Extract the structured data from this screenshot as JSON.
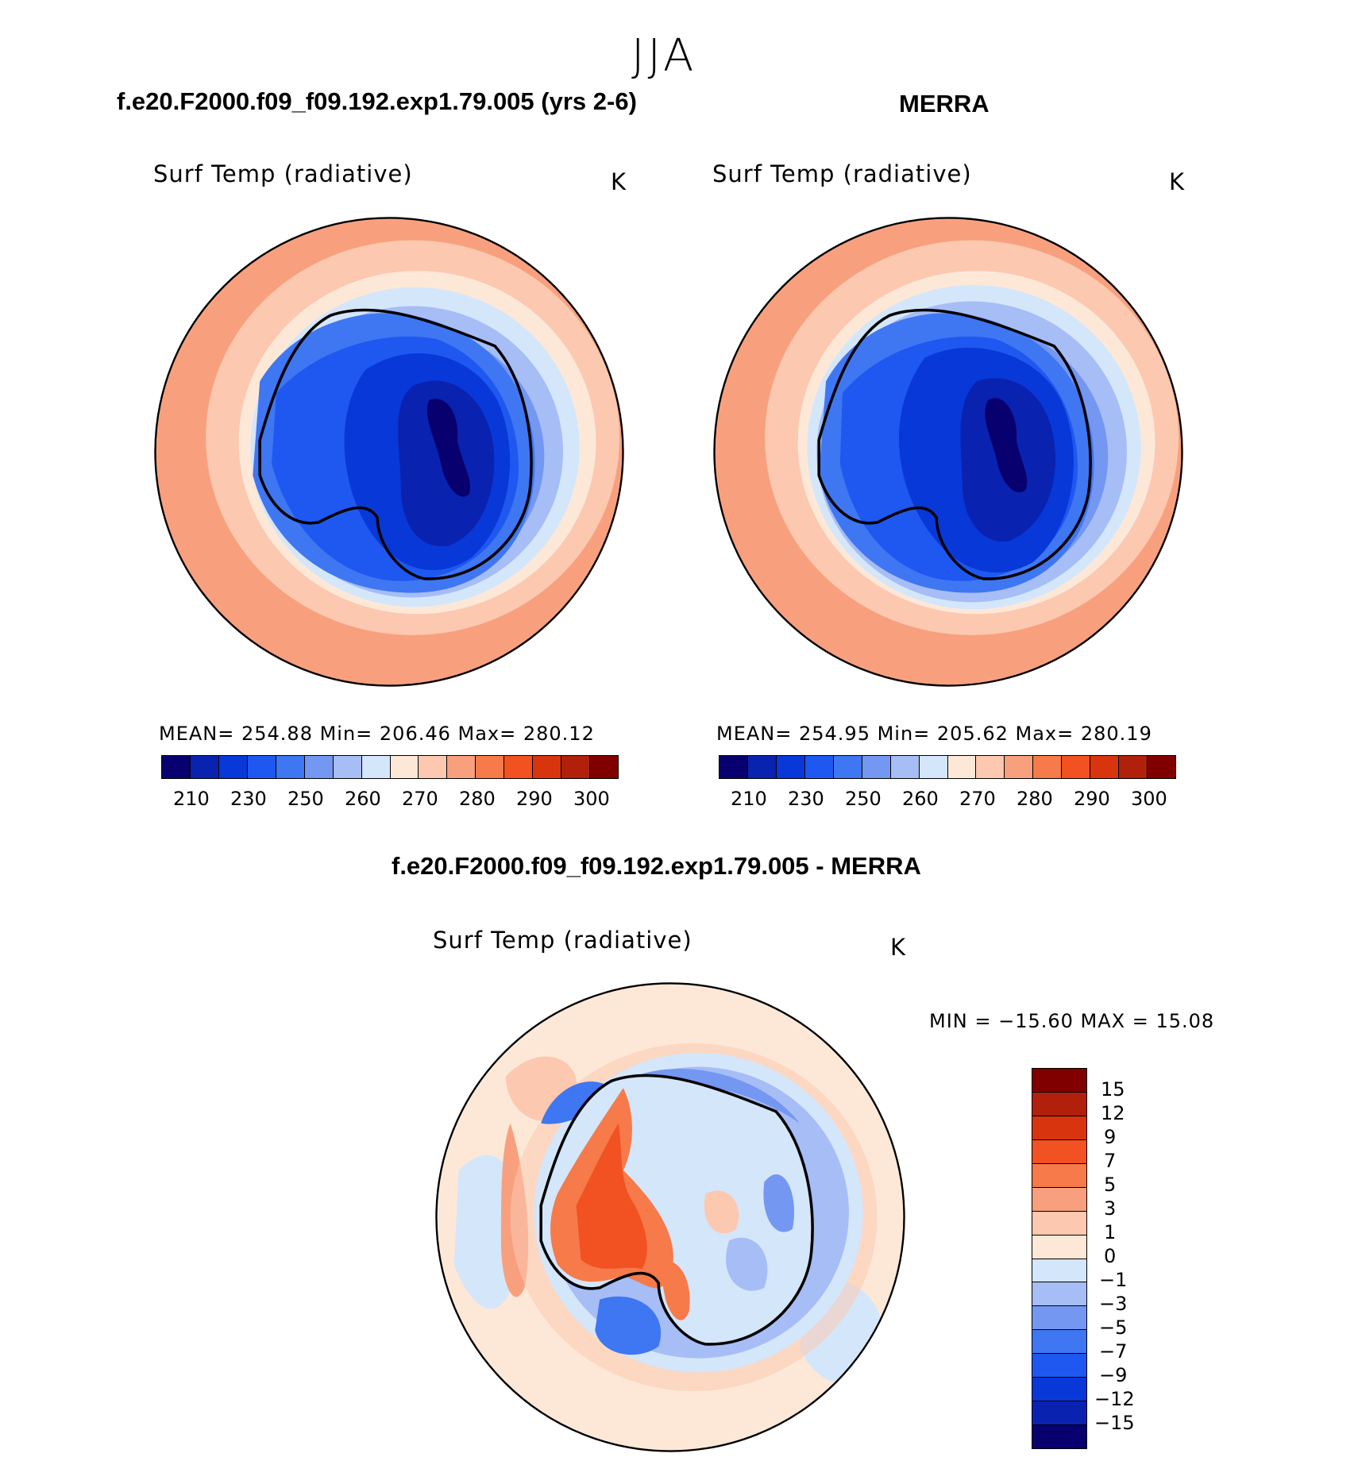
{
  "season": "JJA",
  "colors": {
    "abs_scale": [
      "#08006e",
      "#0a22b0",
      "#0838d8",
      "#1f58f0",
      "#3f76f2",
      "#7497f2",
      "#a6bdf6",
      "#d4e6fa",
      "#fde8d8",
      "#fcc8b0",
      "#f8a07e",
      "#f67a4a",
      "#f25122",
      "#d8340e",
      "#b0200a",
      "#800000"
    ],
    "diff_scale": [
      "#800000",
      "#b0200a",
      "#d8340e",
      "#f25122",
      "#f67a4a",
      "#f8a07e",
      "#fcc8b0",
      "#fde8d8",
      "#d4e6fa",
      "#a6bdf6",
      "#7497f2",
      "#3f76f2",
      "#1f58f0",
      "#0838d8",
      "#0a22b0",
      "#08006e"
    ]
  },
  "panels": {
    "model": {
      "title": "f.e20.F2000.f09_f09.192.exp1.79.005 (yrs 2-6)",
      "variable": "Surf Temp (radiative)",
      "units": "K",
      "stats": "MEAN=  254.88   Min=  206.46    Max=  280.12",
      "tick_labels": [
        "210",
        "230",
        "250",
        "260",
        "270",
        "280",
        "290",
        "300"
      ]
    },
    "obs": {
      "title": "MERRA",
      "variable": "Surf Temp (radiative)",
      "units": "K",
      "stats": "MEAN=  254.95   Min=  205.62    Max=  280.19",
      "tick_labels": [
        "210",
        "230",
        "250",
        "260",
        "270",
        "280",
        "290",
        "300"
      ]
    },
    "diff": {
      "title": "f.e20.F2000.f09_f09.192.exp1.79.005 - MERRA",
      "variable": "Surf Temp (radiative)",
      "units": "K",
      "stats": "MIN  =  −15.60  MAX  =    15.08",
      "tick_labels": [
        "15",
        "12",
        "9",
        "7",
        "5",
        "3",
        "1",
        "0",
        "−1",
        "−3",
        "−5",
        "−7",
        "−9",
        "−12",
        "−15"
      ]
    }
  }
}
